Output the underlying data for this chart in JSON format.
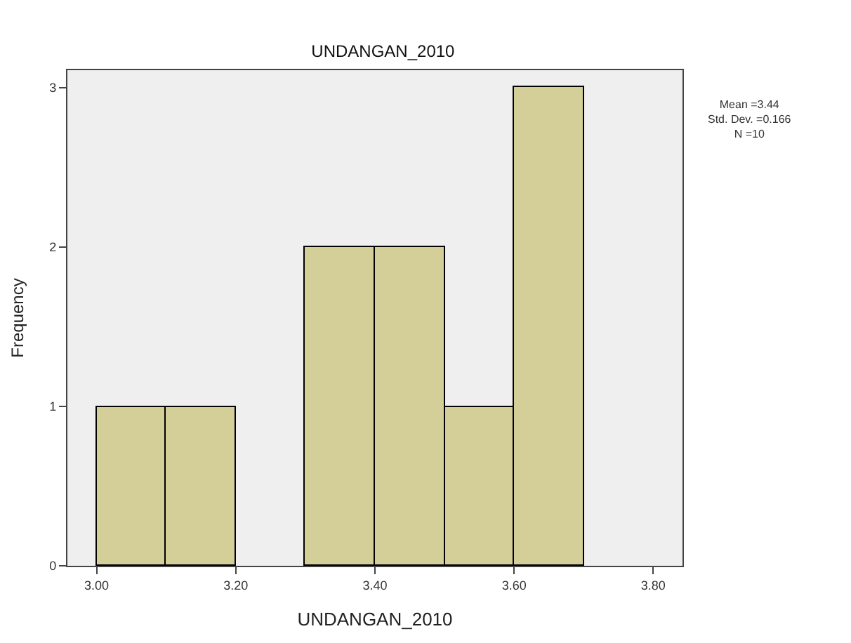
{
  "chart_data": {
    "type": "histogram",
    "title": "UNDANGAN_2010",
    "xlabel": "UNDANGAN_2010",
    "ylabel": "Frequency",
    "bins": [
      3.0,
      3.1,
      3.2,
      3.3,
      3.4,
      3.5,
      3.6,
      3.7
    ],
    "values": [
      1,
      1,
      0,
      2,
      2,
      1,
      3
    ],
    "color": "#d4cf98",
    "xlim": [
      2.958,
      3.842
    ],
    "xticks": [
      {
        "value": 3.0,
        "label": "3.00"
      },
      {
        "value": 3.2,
        "label": "3.20"
      },
      {
        "value": 3.4,
        "label": "3.40"
      },
      {
        "value": 3.6,
        "label": "3.60"
      },
      {
        "value": 3.8,
        "label": "3.80"
      }
    ],
    "ylim": [
      0,
      3.11
    ],
    "yticks": [
      0,
      1,
      2,
      3
    ],
    "grid": false,
    "annotations": [
      "Mean =3.44\nStd. Dev. =0.166\nN =10"
    ]
  }
}
